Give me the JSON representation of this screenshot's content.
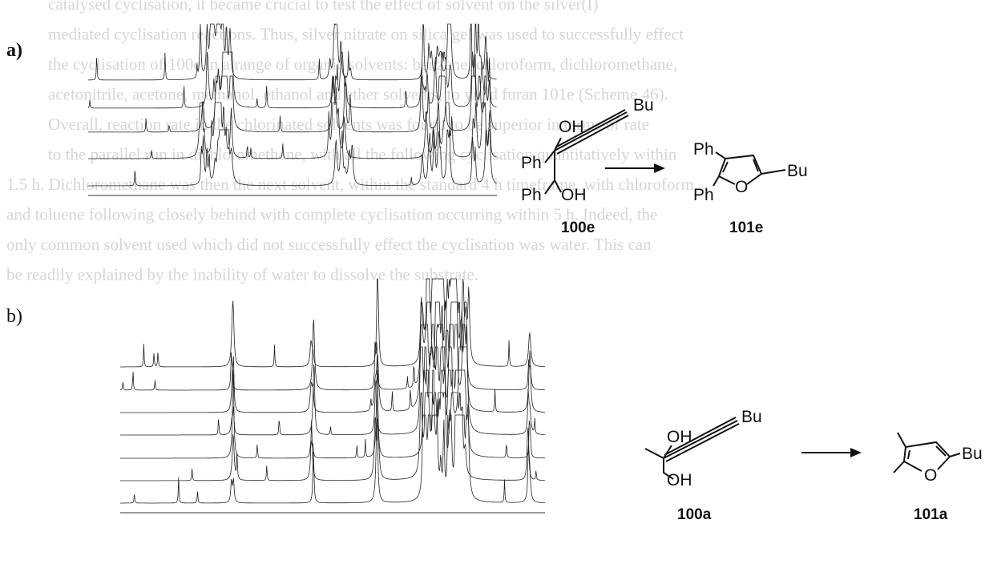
{
  "ghost_text": {
    "lines": [
      "catalysed cyclisation, it became crucial to test the effect of solvent on the silver(I)",
      "mediated cyclisation reactions. Thus, silver nitrate on silica gel was used to successfully effect",
      "the cyclisation of 100e in a range of organic solvents: benzene, chloroform, dichloromethane,",
      "acetonitrile, acetone, methanol, ethanol and ether solvents, to yield furan 101e (Scheme 46).",
      "Overall, reaction rate in the chlorinated solvents was found to be superior in terms of rate",
      "to the parallel run in dichloromethane, with all the following cyclisation quantitatively within",
      "1.5 h. Dichloromethane was then the next solvent, within the standard 4 h timeframe, with chloroform",
      "and toluene following closely behind with complete cyclisation occurring within 5 h. Indeed, the",
      "only common solvent used which did not successfully effect the cyclisation was water. This can",
      "be readily explained by the inability of water to dissolve the substrate."
    ]
  },
  "panels": [
    {
      "label": "a)",
      "reactant": {
        "ph_top": "Ph",
        "oh_top": "OH",
        "bu": "Bu",
        "ph_bottom": "Ph",
        "oh_bottom": "OH",
        "name": "100e"
      },
      "product": {
        "ph_top": "Ph",
        "ph_bottom": "Ph",
        "o": "O",
        "bu": "Bu",
        "name": "101e"
      }
    },
    {
      "label": "b)",
      "reactant": {
        "oh_top": "OH",
        "bu": "Bu",
        "oh_bottom": "OH",
        "name": "100a"
      },
      "product": {
        "o": "O",
        "bu": "Bu",
        "name": "101a"
      }
    }
  ]
}
